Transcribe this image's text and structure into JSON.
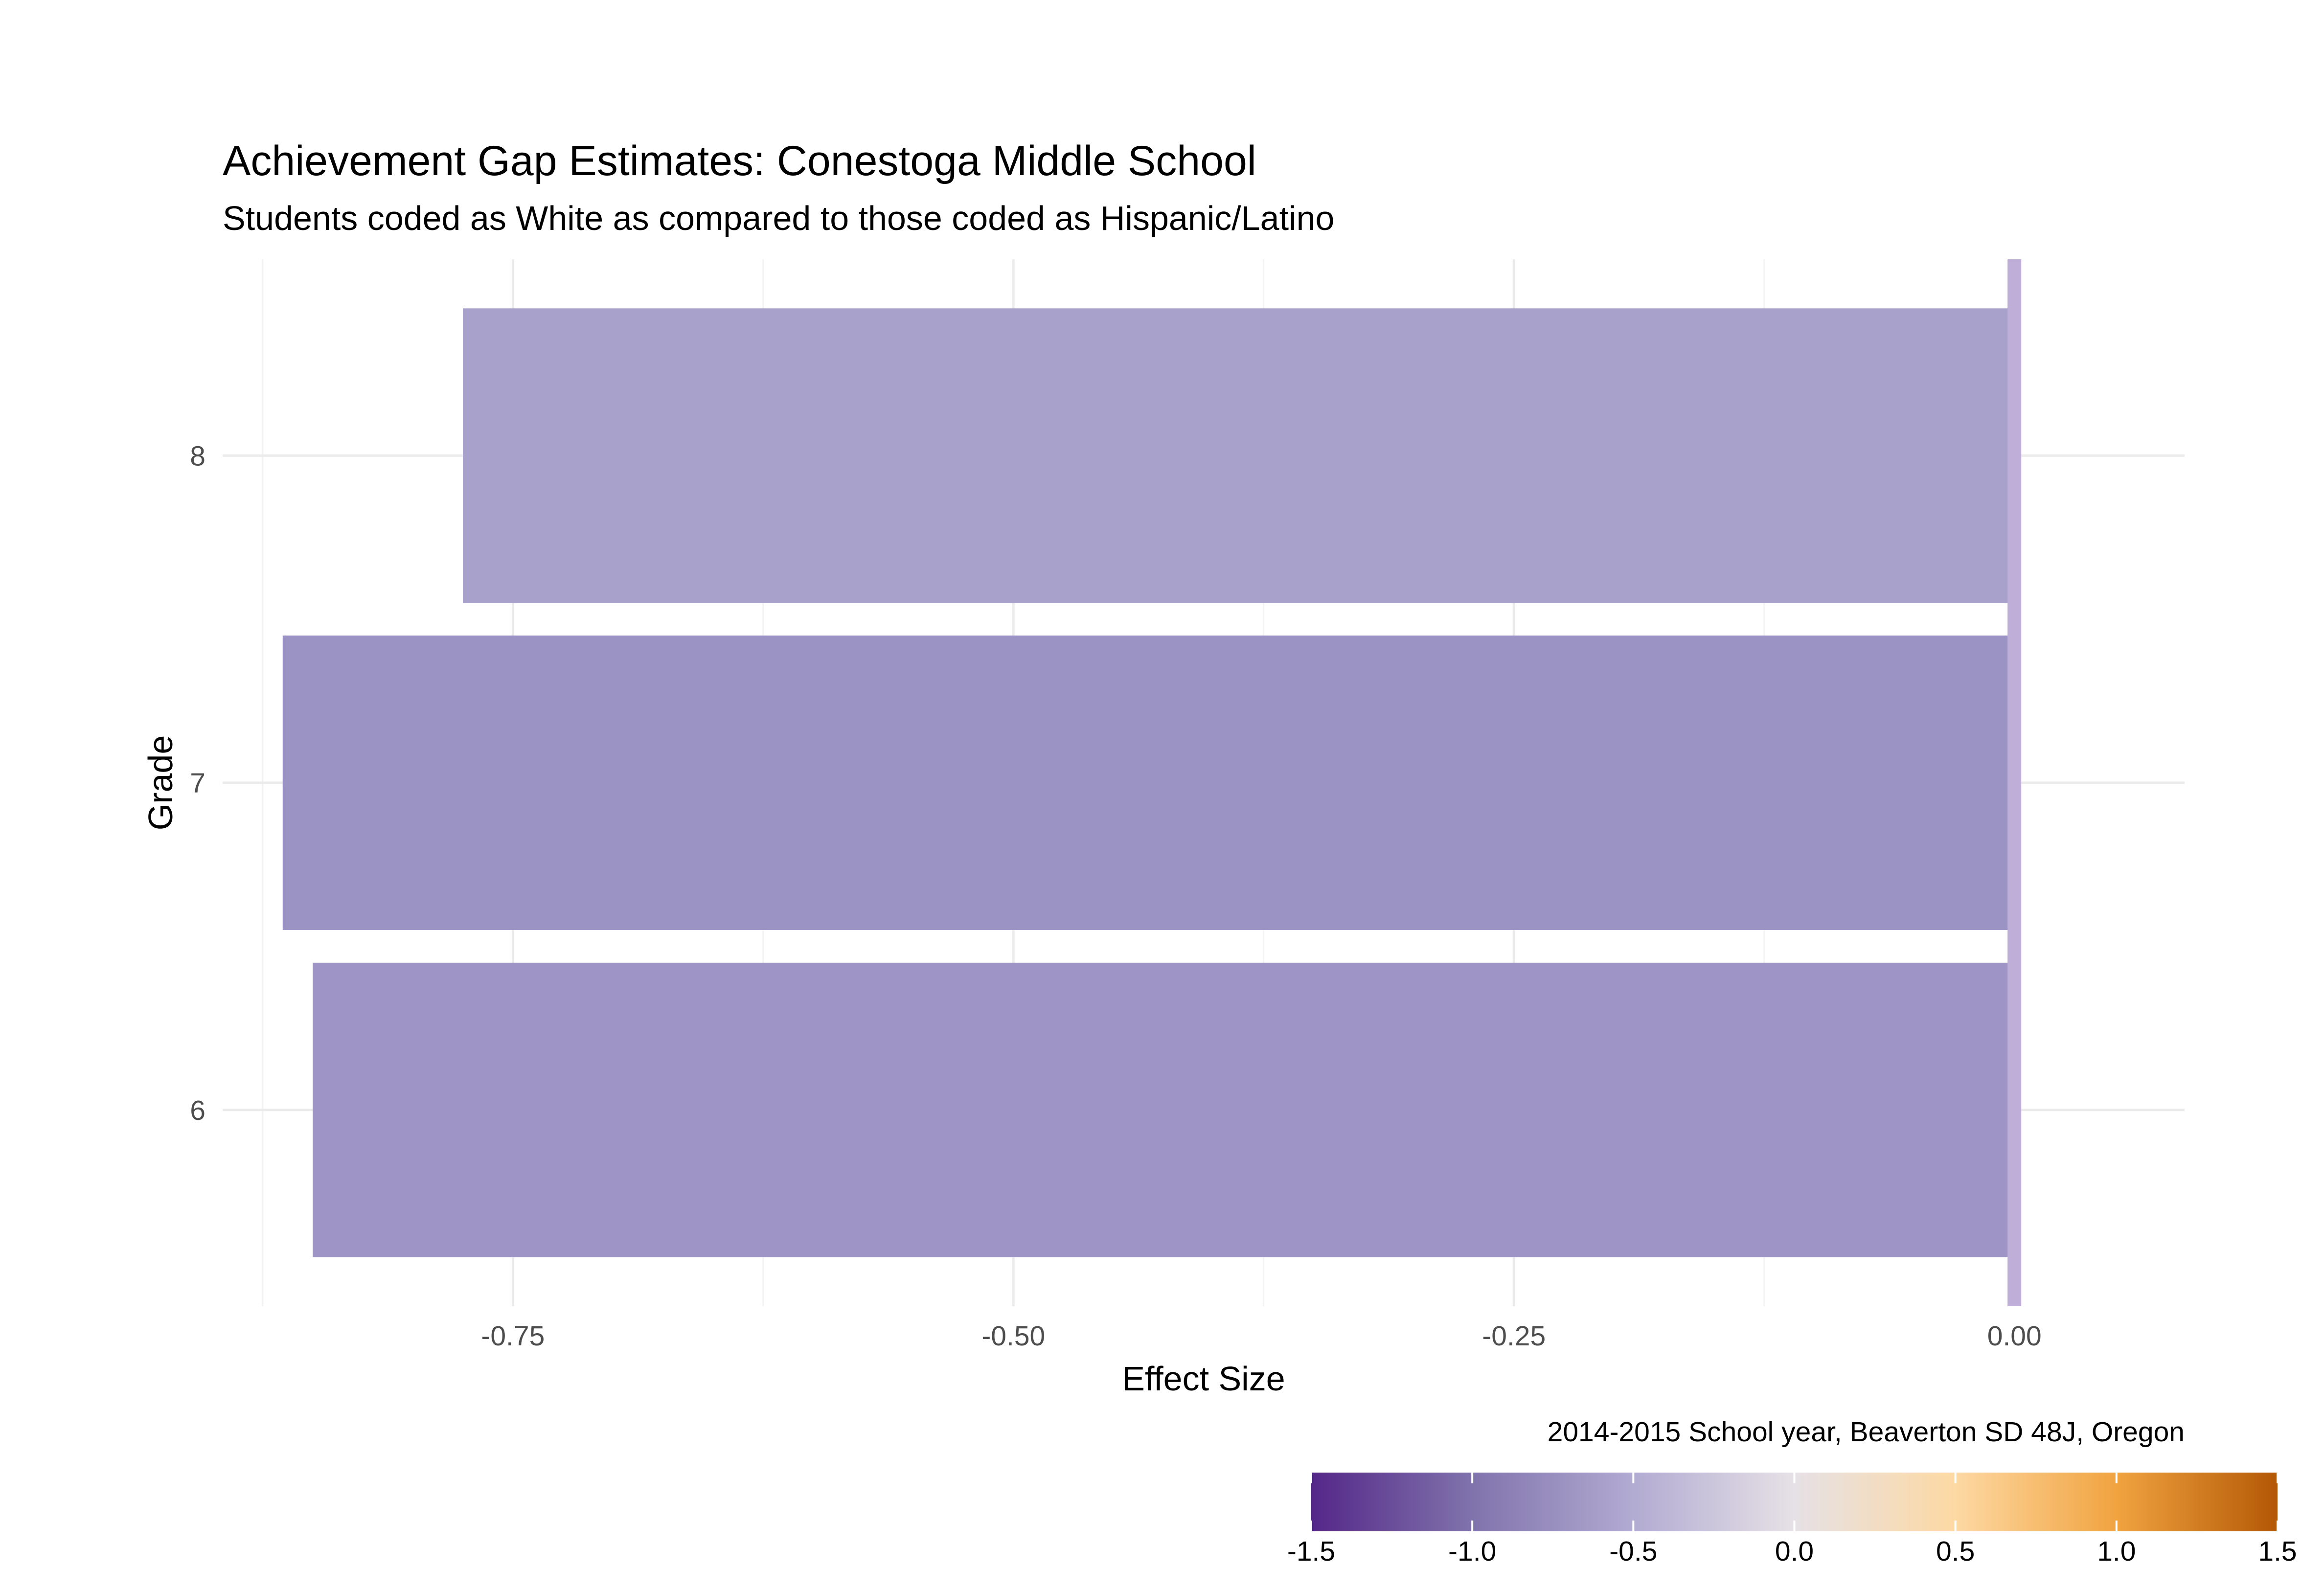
{
  "chart_data": {
    "type": "bar",
    "orientation": "horizontal",
    "title": "Achievement Gap Estimates: Conestoga Middle School",
    "subtitle": "Students coded as White as compared to those coded as Hispanic/Latino",
    "xlabel": "Effect Size",
    "ylabel": "Grade",
    "caption": "2014-2015 School year, Beaverton SD 48J, Oregon",
    "categories": [
      "6",
      "7",
      "8"
    ],
    "values": [
      -0.85,
      -0.865,
      -0.775
    ],
    "bar_colors": [
      "#9e95c6",
      "#9c93c5",
      "#a7a1cc"
    ],
    "xlim": [
      -0.895,
      0.085
    ],
    "x_ticks": [
      -0.75,
      -0.5,
      -0.25,
      0.0
    ],
    "x_tick_labels": [
      "-0.75",
      "-0.50",
      "-0.25",
      "0.00"
    ],
    "reference_line": {
      "x": 0,
      "color": "#bfaed7"
    },
    "grid": true,
    "legend": {
      "type": "colorbar",
      "placement": "bottom-right",
      "range": [
        -1.5,
        1.5
      ],
      "ticks": [
        -1.5,
        -1.0,
        -0.5,
        0.0,
        0.5,
        1.0,
        1.5
      ],
      "tick_labels": [
        "-1.5",
        "-1.0",
        "-0.5",
        "0.0",
        "0.5",
        "1.0",
        "1.5"
      ],
      "colors": [
        "#542788",
        "#8073ac",
        "#b2abd2",
        "#e6e1e6",
        "#fdd9a3",
        "#f1a340",
        "#b35806"
      ]
    }
  }
}
